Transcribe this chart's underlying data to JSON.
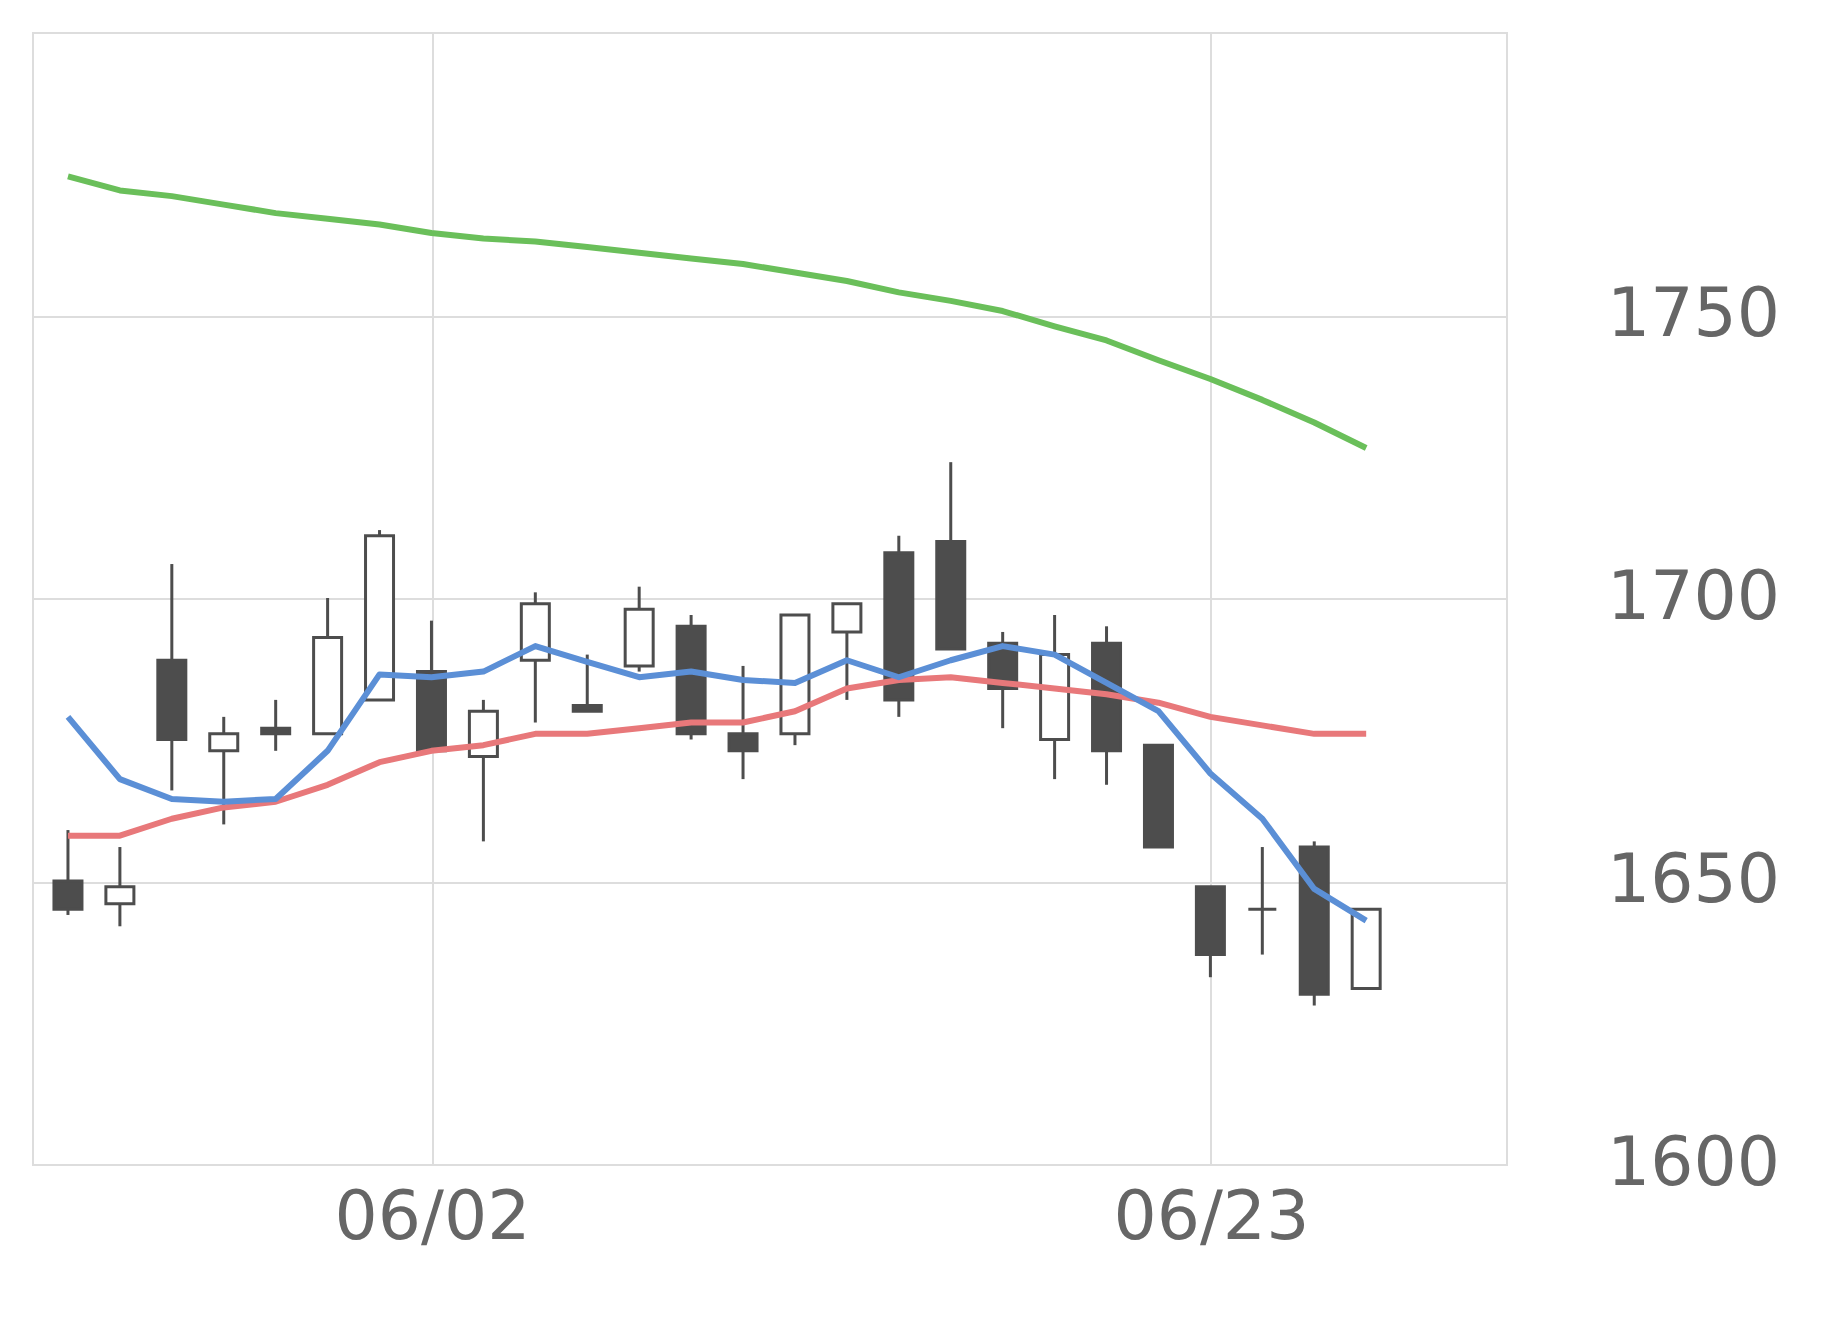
{
  "chart_data": {
    "type": "candlestick",
    "categories": [
      null,
      null,
      null,
      null,
      null,
      null,
      null,
      "06/02",
      null,
      null,
      null,
      null,
      null,
      null,
      null,
      null,
      null,
      null,
      null,
      null,
      null,
      null,
      "06/23",
      null,
      null,
      null
    ],
    "ohlc": [
      [
        1650,
        1659,
        1644,
        1645
      ],
      [
        1646,
        1656,
        1642,
        1649
      ],
      [
        1689,
        1706,
        1666,
        1675
      ],
      [
        1673,
        1679,
        1660,
        1676
      ],
      [
        1677,
        1682,
        1673,
        1676
      ],
      [
        1676,
        1700,
        1676,
        1693
      ],
      [
        1682,
        1712,
        1682,
        1711
      ],
      [
        1687,
        1696,
        1673,
        1673
      ],
      [
        1672,
        1682,
        1657,
        1680
      ],
      [
        1689,
        1701,
        1678,
        1699
      ],
      [
        1681,
        1690,
        1680,
        1680
      ],
      [
        1688,
        1702,
        1687,
        1698
      ],
      [
        1695,
        1697,
        1675,
        1676
      ],
      [
        1676,
        1688,
        1668,
        1673
      ],
      [
        1676,
        1697,
        1674,
        1697
      ],
      [
        1694,
        1699,
        1682,
        1699
      ],
      [
        1708,
        1711,
        1679,
        1682
      ],
      [
        1710,
        1724,
        1691,
        1691
      ],
      [
        1692,
        1694,
        1677,
        1684
      ],
      [
        1675,
        1697,
        1668,
        1690
      ],
      [
        1692,
        1695,
        1667,
        1673
      ],
      [
        1674,
        1674,
        1656,
        1656
      ],
      [
        1649,
        1649,
        1633,
        1637
      ],
      [
        1645,
        1656,
        1637,
        1645
      ],
      [
        1656,
        1657,
        1628,
        1630
      ],
      [
        1631,
        1645,
        1631,
        1645
      ]
    ],
    "series": [
      {
        "type": "line",
        "color": "#6abf5a",
        "values": [
          1774.5,
          1772,
          1771,
          1769.5,
          1768,
          1767,
          1766,
          1764.5,
          1763.5,
          1763,
          1762,
          1761,
          1760,
          1759,
          1757.5,
          1756,
          1754,
          1752.5,
          1750.7,
          1748,
          1745.5,
          1742,
          1738.7,
          1735,
          1731,
          1726.5
        ]
      },
      {
        "type": "line",
        "color": "#e8787a",
        "values": [
          1658,
          1658,
          1661,
          1663,
          1664,
          1667,
          1671,
          1673,
          1674,
          1676,
          1676,
          1677,
          1678,
          1678,
          1680,
          1684,
          1685.5,
          1686,
          1685,
          1684,
          1683,
          1681.5,
          1679,
          1677.5,
          1676,
          1676
        ]
      },
      {
        "type": "line",
        "color": "#5b8fd6",
        "values": [
          1679,
          1668,
          1664.5,
          1664,
          1664.5,
          1673,
          1686.5,
          1686,
          1687,
          1691.5,
          1688.7,
          1686,
          1687,
          1685.5,
          1685,
          1689,
          1686,
          1689,
          1691.5,
          1690,
          1685,
          1680,
          1669,
          1661,
          1648.6,
          1643
        ]
      }
    ],
    "ylim": [
      1600,
      1800
    ],
    "yticks": [
      1600,
      1650,
      1700,
      1750
    ],
    "grid": true
  }
}
